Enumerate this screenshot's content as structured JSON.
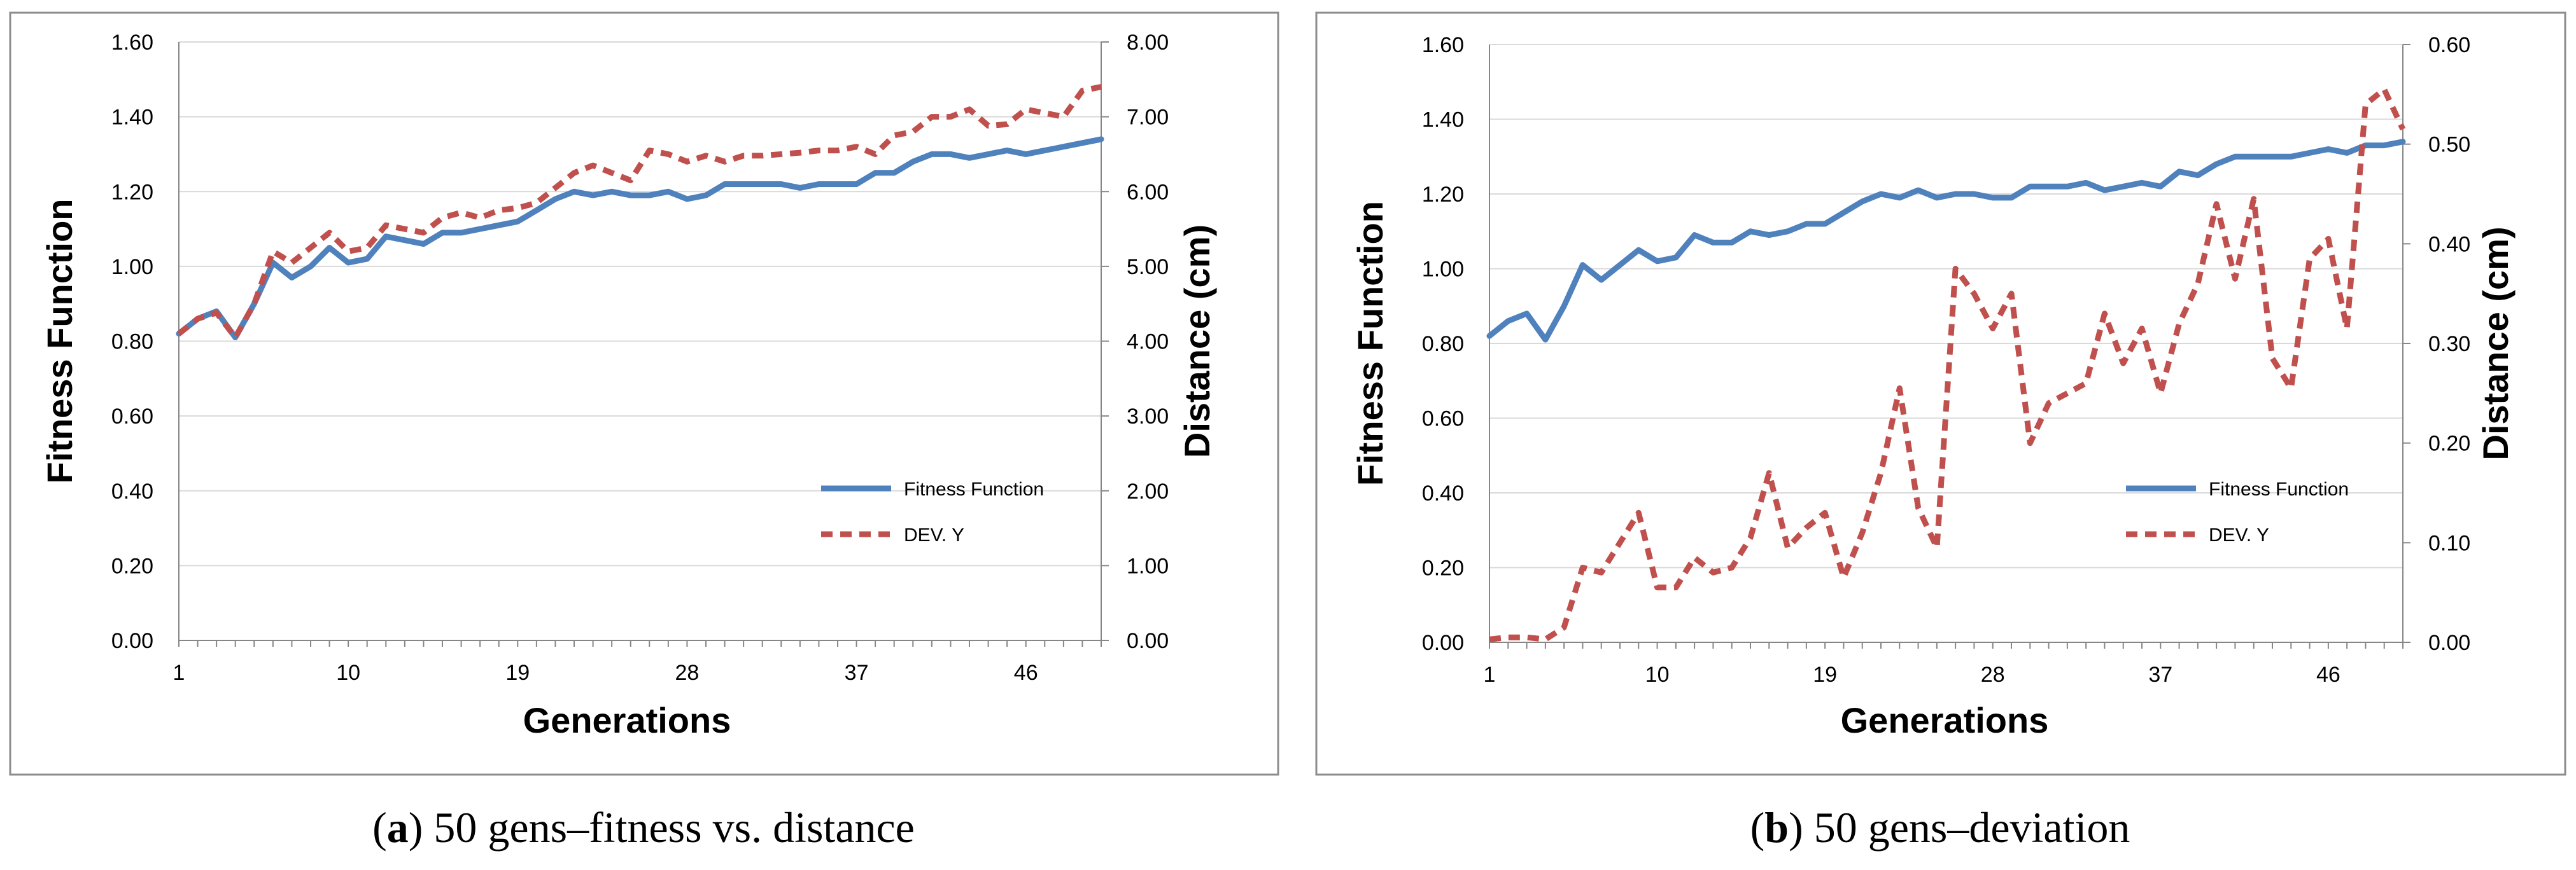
{
  "chart_data": [
    {
      "type": "line",
      "panel": "a",
      "title": "",
      "xlabel": "Generations",
      "ylabel": "Fitness Function",
      "y2label": "Distance  (cm)",
      "ylim": [
        0,
        1.6
      ],
      "y2lim": [
        0,
        8
      ],
      "yticks": [
        "0.00",
        "0.20",
        "0.40",
        "0.60",
        "0.80",
        "1.00",
        "1.20",
        "1.40",
        "1.60"
      ],
      "y2ticks": [
        "0.00",
        "1.00",
        "2.00",
        "3.00",
        "4.00",
        "5.00",
        "6.00",
        "7.00",
        "8.00"
      ],
      "xticks": [
        "1",
        "10",
        "19",
        "28",
        "37",
        "46"
      ],
      "grid": true,
      "legend_position": "bottom-right",
      "x": [
        1,
        2,
        3,
        4,
        5,
        6,
        7,
        8,
        9,
        10,
        11,
        12,
        13,
        14,
        15,
        16,
        17,
        18,
        19,
        20,
        21,
        22,
        23,
        24,
        25,
        26,
        27,
        28,
        29,
        30,
        31,
        32,
        33,
        34,
        35,
        36,
        37,
        38,
        39,
        40,
        41,
        42,
        43,
        44,
        45,
        46,
        47,
        48,
        49,
        50
      ],
      "series": [
        {
          "name": "Fitness Function",
          "axis": "left",
          "color": "#4f81bd",
          "style": "solid",
          "values": [
            0.82,
            0.86,
            0.88,
            0.81,
            0.9,
            1.01,
            0.97,
            1.0,
            1.05,
            1.01,
            1.02,
            1.08,
            1.07,
            1.06,
            1.09,
            1.09,
            1.1,
            1.11,
            1.12,
            1.15,
            1.18,
            1.2,
            1.19,
            1.2,
            1.19,
            1.19,
            1.2,
            1.18,
            1.19,
            1.22,
            1.22,
            1.22,
            1.22,
            1.21,
            1.22,
            1.22,
            1.22,
            1.25,
            1.25,
            1.28,
            1.3,
            1.3,
            1.29,
            1.3,
            1.31,
            1.3,
            1.31,
            1.32,
            1.33,
            1.34
          ]
        },
        {
          "name": "DEV. Y",
          "axis": "right",
          "color": "#c0504d",
          "style": "dashed",
          "values": [
            4.1,
            4.3,
            4.38,
            4.05,
            4.5,
            5.2,
            5.05,
            5.25,
            5.45,
            5.2,
            5.25,
            5.55,
            5.5,
            5.45,
            5.65,
            5.72,
            5.65,
            5.75,
            5.78,
            5.85,
            6.05,
            6.25,
            6.35,
            6.25,
            6.15,
            6.55,
            6.5,
            6.4,
            6.48,
            6.4,
            6.48,
            6.48,
            6.5,
            6.52,
            6.55,
            6.55,
            6.6,
            6.5,
            6.75,
            6.8,
            7.0,
            7.0,
            7.1,
            6.88,
            6.9,
            7.1,
            7.05,
            7.0,
            7.35,
            7.4
          ]
        }
      ]
    },
    {
      "type": "line",
      "panel": "b",
      "title": "",
      "xlabel": "Generations",
      "ylabel": "Fitness Function",
      "y2label": "Distance  (cm)",
      "ylim": [
        0,
        1.6
      ],
      "y2lim": [
        0,
        0.6
      ],
      "yticks": [
        "0.00",
        "0.20",
        "0.40",
        "0.60",
        "0.80",
        "1.00",
        "1.20",
        "1.40",
        "1.60"
      ],
      "y2ticks": [
        "0.00",
        "0.10",
        "0.20",
        "0.30",
        "0.40",
        "0.50",
        "0.60"
      ],
      "xticks": [
        "1",
        "10",
        "19",
        "28",
        "37",
        "46"
      ],
      "grid": true,
      "legend_position": "bottom-right",
      "x": [
        1,
        2,
        3,
        4,
        5,
        6,
        7,
        8,
        9,
        10,
        11,
        12,
        13,
        14,
        15,
        16,
        17,
        18,
        19,
        20,
        21,
        22,
        23,
        24,
        25,
        26,
        27,
        28,
        29,
        30,
        31,
        32,
        33,
        34,
        35,
        36,
        37,
        38,
        39,
        40,
        41,
        42,
        43,
        44,
        45,
        46,
        47,
        48,
        49,
        50
      ],
      "series": [
        {
          "name": "Fitness Function",
          "axis": "left",
          "color": "#4f81bd",
          "style": "solid",
          "values": [
            0.82,
            0.86,
            0.88,
            0.81,
            0.9,
            1.01,
            0.97,
            1.01,
            1.05,
            1.02,
            1.03,
            1.09,
            1.07,
            1.07,
            1.1,
            1.09,
            1.1,
            1.12,
            1.12,
            1.15,
            1.18,
            1.2,
            1.19,
            1.21,
            1.19,
            1.2,
            1.2,
            1.19,
            1.19,
            1.22,
            1.22,
            1.22,
            1.23,
            1.21,
            1.22,
            1.23,
            1.22,
            1.26,
            1.25,
            1.28,
            1.3,
            1.3,
            1.3,
            1.3,
            1.31,
            1.32,
            1.31,
            1.33,
            1.33,
            1.34
          ]
        },
        {
          "name": "DEV. Y",
          "axis": "right",
          "color": "#c0504d",
          "style": "dashed",
          "values": [
            0.003,
            0.005,
            0.005,
            0.003,
            0.015,
            0.075,
            0.07,
            0.1,
            0.13,
            0.055,
            0.055,
            0.085,
            0.07,
            0.075,
            0.105,
            0.17,
            0.095,
            0.115,
            0.13,
            0.065,
            0.11,
            0.17,
            0.255,
            0.135,
            0.095,
            0.375,
            0.35,
            0.315,
            0.35,
            0.2,
            0.24,
            0.25,
            0.26,
            0.33,
            0.28,
            0.315,
            0.25,
            0.32,
            0.36,
            0.44,
            0.365,
            0.445,
            0.285,
            0.255,
            0.385,
            0.405,
            0.315,
            0.54,
            0.555,
            0.515
          ]
        }
      ]
    }
  ],
  "captions": [
    {
      "label": "a",
      "text": ") 50 gens–fitness vs. distance"
    },
    {
      "label": "b",
      "text": ") 50 gens–deviation"
    }
  ]
}
